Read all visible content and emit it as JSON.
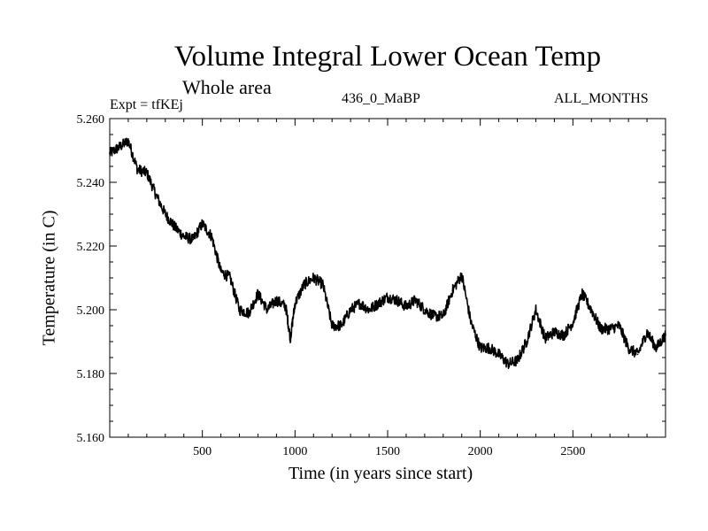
{
  "header": {
    "title": "Volume Integral Lower Ocean Temp",
    "subtitle": "Whole area",
    "experiment": "Expt = tfKEj",
    "run_label": "436_0_MaBP",
    "months": "ALL_MONTHS"
  },
  "chart_data": {
    "type": "line",
    "title": "Volume Integral Lower Ocean Temp",
    "subtitle": "Whole area",
    "xlabel": "Time (in years since start)",
    "ylabel": "Temperature (in C)",
    "xlim": [
      0,
      3000
    ],
    "ylim": [
      5.16,
      5.26
    ],
    "xticks": [
      500,
      1000,
      1500,
      2000,
      2500
    ],
    "xtick_labels": [
      "500",
      "1000",
      "1500",
      "2000",
      "2500"
    ],
    "yticks": [
      5.16,
      5.18,
      5.2,
      5.22,
      5.24,
      5.26
    ],
    "ytick_labels": [
      "5.160",
      "5.180",
      "5.200",
      "5.220",
      "5.240",
      "5.260"
    ],
    "grid": false,
    "series": [
      {
        "color": "#000000",
        "x": [
          0,
          50,
          100,
          150,
          200,
          250,
          300,
          350,
          400,
          450,
          500,
          550,
          600,
          650,
          700,
          750,
          800,
          850,
          900,
          950,
          975,
          1000,
          1050,
          1100,
          1150,
          1200,
          1250,
          1300,
          1350,
          1400,
          1450,
          1500,
          1550,
          1600,
          1650,
          1700,
          1750,
          1800,
          1850,
          1900,
          1950,
          2000,
          2050,
          2100,
          2150,
          2200,
          2250,
          2300,
          2350,
          2400,
          2450,
          2500,
          2550,
          2600,
          2650,
          2700,
          2750,
          2800,
          2850,
          2900,
          2950,
          3000
        ],
        "y": [
          5.249,
          5.251,
          5.253,
          5.244,
          5.243,
          5.236,
          5.23,
          5.226,
          5.223,
          5.222,
          5.227,
          5.223,
          5.212,
          5.21,
          5.2,
          5.199,
          5.205,
          5.2,
          5.203,
          5.201,
          5.191,
          5.202,
          5.208,
          5.21,
          5.208,
          5.195,
          5.195,
          5.2,
          5.202,
          5.2,
          5.202,
          5.204,
          5.203,
          5.201,
          5.203,
          5.2,
          5.198,
          5.198,
          5.206,
          5.211,
          5.196,
          5.188,
          5.188,
          5.186,
          5.183,
          5.184,
          5.19,
          5.2,
          5.191,
          5.193,
          5.192,
          5.196,
          5.205,
          5.2,
          5.194,
          5.194,
          5.195,
          5.188,
          5.186,
          5.193,
          5.188,
          5.192
        ]
      }
    ]
  }
}
